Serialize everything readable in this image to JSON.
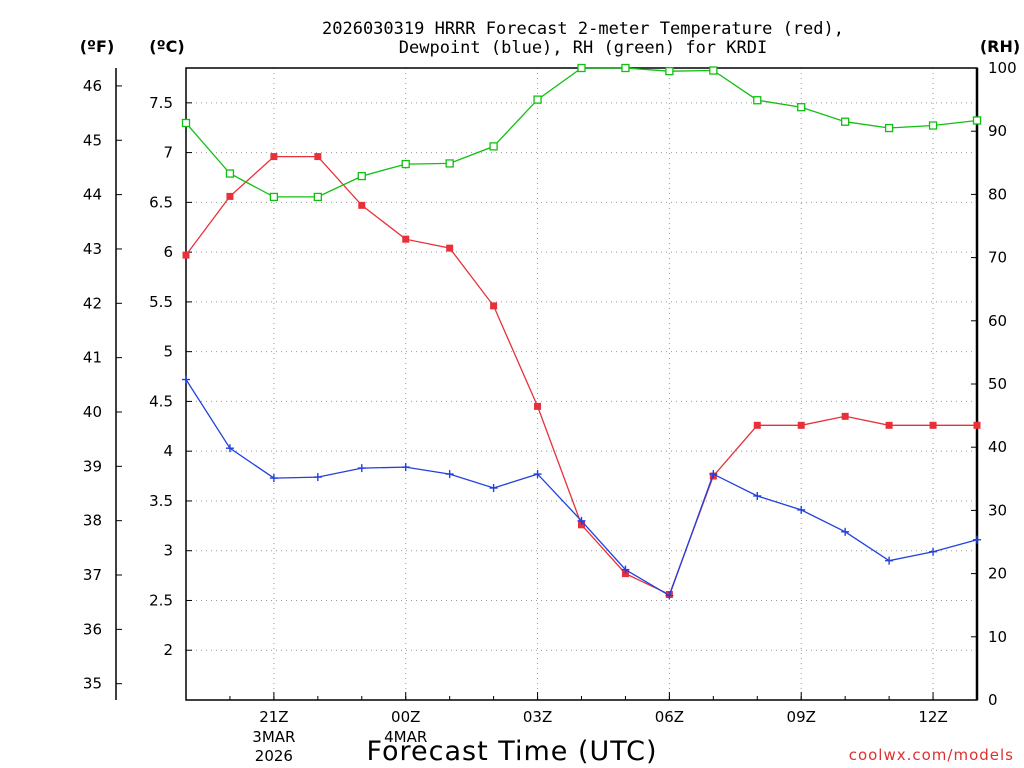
{
  "title_line1": "2026030319 HRRR Forecast 2-meter Temperature (red),",
  "title_line2": "Dewpoint (blue), RH (green) for KRDI",
  "unit_f": "(ºF)",
  "unit_c": "(ºC)",
  "unit_rh": "(RH)",
  "xlabel": "Forecast Time (UTC)",
  "credit": "coolwx.com/models",
  "colors": {
    "temperature": "#e8303a",
    "dewpoint": "#2040e0",
    "rh": "#10c010",
    "axes": "#000000"
  },
  "chart_data": {
    "type": "line",
    "x": [
      "19Z",
      "20Z",
      "21Z",
      "22Z",
      "23Z",
      "00Z",
      "01Z",
      "02Z",
      "03Z",
      "04Z",
      "05Z",
      "06Z",
      "07Z",
      "08Z",
      "09Z",
      "10Z",
      "11Z",
      "12Z",
      "13Z"
    ],
    "x_tick_labels": [
      "21Z",
      "00Z",
      "03Z",
      "06Z",
      "09Z",
      "12Z"
    ],
    "x_tick_indices": [
      2,
      5,
      8,
      11,
      14,
      17
    ],
    "x_date_labels": [
      {
        "index": 2,
        "lines": [
          "3MAR",
          "2026"
        ]
      },
      {
        "index": 5,
        "lines": [
          "4MAR"
        ]
      }
    ],
    "y_left_c": {
      "range": [
        1.5,
        7.85
      ],
      "ticks": [
        2,
        2.5,
        3,
        3.5,
        4,
        4.5,
        5,
        5.5,
        6,
        6.5,
        7,
        7.5
      ]
    },
    "y_left_f": {
      "range": [
        34.7,
        46.33
      ],
      "ticks": [
        35,
        36,
        37,
        38,
        39,
        40,
        41,
        42,
        43,
        44,
        45,
        46
      ]
    },
    "y_right_rh": {
      "range": [
        0,
        100
      ],
      "ticks": [
        0,
        10,
        20,
        30,
        40,
        50,
        60,
        70,
        80,
        90,
        100
      ]
    },
    "grid": true,
    "series": [
      {
        "name": "Temperature",
        "key": "temperature",
        "axis": "c",
        "marker": "filled-square",
        "values": [
          5.97,
          6.56,
          6.96,
          6.96,
          6.47,
          6.13,
          6.04,
          5.46,
          4.45,
          3.26,
          2.77,
          2.56,
          3.75,
          4.26,
          4.26,
          4.35,
          4.26,
          4.26,
          4.26
        ]
      },
      {
        "name": "Dewpoint",
        "key": "dewpoint",
        "axis": "c",
        "marker": "plus",
        "values": [
          4.72,
          4.03,
          3.73,
          3.74,
          3.83,
          3.84,
          3.77,
          3.63,
          3.77,
          3.3,
          2.81,
          2.55,
          3.77,
          3.55,
          3.41,
          3.19,
          2.9,
          2.99,
          3.11
        ]
      },
      {
        "name": "RH",
        "key": "rh",
        "axis": "rh",
        "marker": "open-square",
        "values": [
          91.3,
          83.3,
          79.6,
          79.6,
          82.9,
          84.8,
          84.9,
          87.6,
          95.0,
          100,
          100,
          99.5,
          99.6,
          94.9,
          93.8,
          91.5,
          90.5,
          90.9,
          91.7
        ]
      }
    ]
  }
}
